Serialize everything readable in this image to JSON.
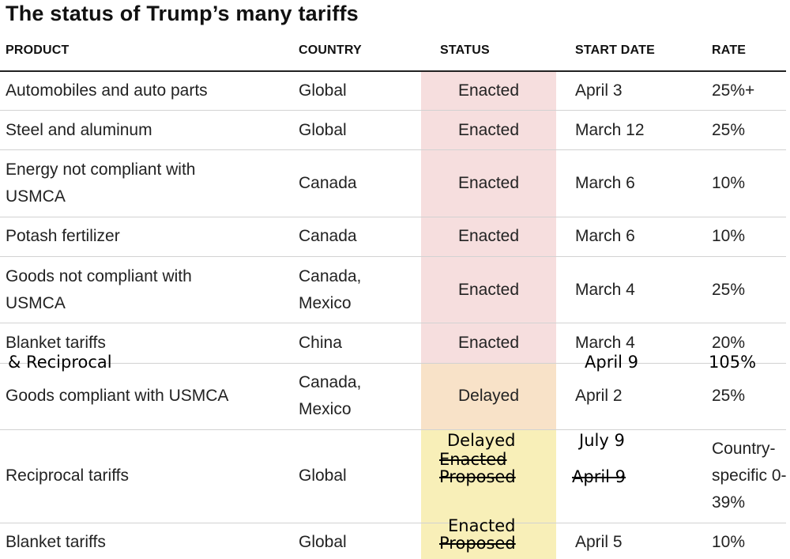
{
  "title": "The status of Trump’s many tariffs",
  "headers": {
    "product": "PRODUCT",
    "country": "COUNTRY",
    "status": "STATUS",
    "start_date": "START DATE",
    "rate": "RATE"
  },
  "rows": [
    {
      "product": "Automobiles and auto parts",
      "country": "Global",
      "status": "Enacted",
      "start_date": "April 3",
      "rate": "25%+"
    },
    {
      "product": "Steel and aluminum",
      "country": "Global",
      "status": "Enacted",
      "start_date": "March 12",
      "rate": "25%"
    },
    {
      "product": "Energy not compliant with USMCA",
      "country": "Canada",
      "status": "Enacted",
      "start_date": "March 6",
      "rate": "10%"
    },
    {
      "product": "Potash fertilizer",
      "country": "Canada",
      "status": "Enacted",
      "start_date": "March 6",
      "rate": "10%"
    },
    {
      "product": "Goods not compliant with USMCA",
      "country": "Canada, Mexico",
      "status": "Enacted",
      "start_date": "March 4",
      "rate": "25%"
    },
    {
      "product": "Blanket tariffs",
      "country": "China",
      "status": "Enacted",
      "start_date": "March 4",
      "rate": "20%"
    },
    {
      "product": "Goods compliant with USMCA",
      "country": "Canada, Mexico",
      "status": "Delayed",
      "start_date": "April 2",
      "rate": "25%"
    },
    {
      "product": "Reciprocal tariffs",
      "country": "Global",
      "status": "",
      "start_date": "",
      "rate": "Country-specific 0-39%"
    },
    {
      "product": "Blanket tariffs",
      "country": "Global",
      "status": "",
      "start_date": "April 5",
      "rate": "10%"
    }
  ],
  "annotations": {
    "china_product_added": "& Reciprocal",
    "china_date_added": "April 9",
    "china_rate_added": "105%",
    "reciprocal_status_new": "Delayed",
    "reciprocal_status_struck_1": "Enacted",
    "reciprocal_status_struck_2": "Proposed",
    "reciprocal_date_new": "July 9",
    "reciprocal_date_struck": "April 9",
    "blanket_status_new": "Enacted",
    "blanket_status_struck": "Proposed"
  },
  "colors": {
    "enacted_band": "#f6dede",
    "delayed_band": "#f8e2c8",
    "proposed_band": "#f8efb8"
  }
}
